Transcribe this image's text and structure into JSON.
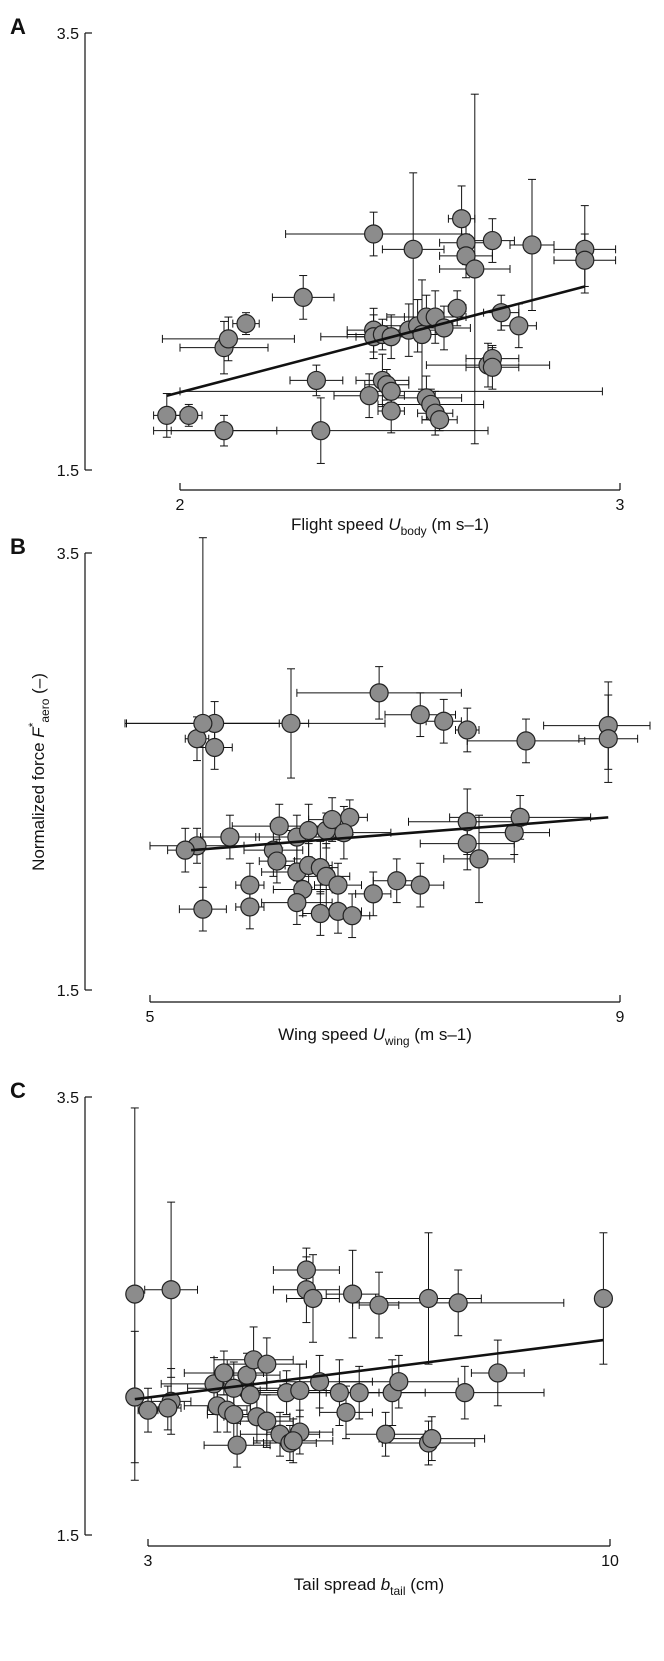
{
  "figure": {
    "panels": [
      "A",
      "B",
      "C"
    ],
    "ylabel": "Normalized force",
    "ylabel_symbol": "F",
    "ylabel_sup": "*",
    "ylabel_sub": "aero",
    "ylabel_unit": "(–)"
  },
  "colors": {
    "marker_fill": "#8c8c8c",
    "marker_stroke": "#222222",
    "fit_line": "#111111",
    "axis": "#111111"
  },
  "chart_data": [
    {
      "type": "scatter",
      "panel": "A",
      "xlabel": "Flight speed",
      "xlabel_symbol": "U",
      "xlabel_sub": "body",
      "xlabel_unit": "(m s–1)",
      "xlim": [
        2,
        3
      ],
      "ylim": [
        1.5,
        3.5
      ],
      "xticks": [
        "2",
        "3"
      ],
      "yticks": [
        "1.5",
        "3.5"
      ],
      "points": [
        {
          "x": 1.97,
          "y": 1.75,
          "xe": 0.03,
          "ye": 0.1
        },
        {
          "x": 2.02,
          "y": 1.75,
          "xe": 0.03,
          "ye": 0.05
        },
        {
          "x": 2.1,
          "y": 1.68,
          "xe": 0.12,
          "ye": 0.07
        },
        {
          "x": 2.32,
          "y": 1.68,
          "xe": 0.38,
          "ye": 0.15
        },
        {
          "x": 2.1,
          "y": 2.06,
          "xe": 0.1,
          "ye": 0.12
        },
        {
          "x": 2.11,
          "y": 2.1,
          "xe": 0.15,
          "ye": 0.1
        },
        {
          "x": 2.15,
          "y": 2.17,
          "xe": 0.03,
          "ye": 0.05
        },
        {
          "x": 2.28,
          "y": 2.29,
          "xe": 0.07,
          "ye": 0.1
        },
        {
          "x": 2.31,
          "y": 1.91,
          "xe": 0.06,
          "ye": 0.07
        },
        {
          "x": 2.44,
          "y": 2.14,
          "xe": 0.06,
          "ye": 0.1
        },
        {
          "x": 2.44,
          "y": 2.11,
          "xe": 0.12,
          "ye": 0.1
        },
        {
          "x": 2.46,
          "y": 2.12,
          "xe": 0.08,
          "ye": 0.07
        },
        {
          "x": 2.48,
          "y": 2.11,
          "xe": 0.08,
          "ye": 0.1
        },
        {
          "x": 2.46,
          "y": 1.91,
          "xe": 0.06,
          "ye": 0.12
        },
        {
          "x": 2.47,
          "y": 1.89,
          "xe": 0.05,
          "ye": 0.07
        },
        {
          "x": 2.48,
          "y": 1.86,
          "xe": 0.48,
          "ye": 0.05
        },
        {
          "x": 2.43,
          "y": 1.84,
          "xe": 0.08,
          "ye": 0.1
        },
        {
          "x": 2.48,
          "y": 1.77,
          "xe": 0.03,
          "ye": 0.1
        },
        {
          "x": 2.52,
          "y": 2.14,
          "xe": 0.07,
          "ye": 0.12
        },
        {
          "x": 2.54,
          "y": 2.16,
          "xe": 0.08,
          "ye": 0.12
        },
        {
          "x": 2.55,
          "y": 2.12,
          "xe": 0.05,
          "ye": 0.25
        },
        {
          "x": 2.56,
          "y": 2.2,
          "xe": 0.09,
          "ye": 0.1
        },
        {
          "x": 2.58,
          "y": 2.2,
          "xe": 0.07,
          "ye": 0.12
        },
        {
          "x": 2.6,
          "y": 2.15,
          "xe": 0.06,
          "ye": 0.1
        },
        {
          "x": 2.56,
          "y": 1.83,
          "xe": 0.08,
          "ye": 0.1
        },
        {
          "x": 2.57,
          "y": 1.8,
          "xe": 0.12,
          "ye": 0.07
        },
        {
          "x": 2.58,
          "y": 1.76,
          "xe": 0.04,
          "ye": 0.1
        },
        {
          "x": 2.59,
          "y": 1.73,
          "xe": 0.04,
          "ye": 0.05
        },
        {
          "x": 2.64,
          "y": 2.65,
          "xe": 0.03,
          "ye": 0.15
        },
        {
          "x": 2.63,
          "y": 2.24,
          "xe": 0.02,
          "ye": 0.08
        },
        {
          "x": 2.65,
          "y": 2.54,
          "xe": 0.06,
          "ye": 0.1
        },
        {
          "x": 2.65,
          "y": 2.48,
          "xe": 0.06,
          "ye": 0.1
        },
        {
          "x": 2.67,
          "y": 2.42,
          "xe": 0.08,
          "ye": 0.8
        },
        {
          "x": 2.71,
          "y": 2.55,
          "xe": 0.05,
          "ye": 0.1
        },
        {
          "x": 2.53,
          "y": 2.51,
          "xe": 0.07,
          "ye": 0.35
        },
        {
          "x": 2.44,
          "y": 2.58,
          "xe": 0.2,
          "ye": 0.1
        },
        {
          "x": 2.7,
          "y": 1.98,
          "xe": 0.14,
          "ye": 0.1
        },
        {
          "x": 2.71,
          "y": 2.01,
          "xe": 0.06,
          "ye": 0.05
        },
        {
          "x": 2.73,
          "y": 2.22,
          "xe": 0.04,
          "ye": 0.08
        },
        {
          "x": 2.77,
          "y": 2.16,
          "xe": 0.04,
          "ye": 0.1
        },
        {
          "x": 2.8,
          "y": 2.53,
          "xe": 0.05,
          "ye": 0.3
        },
        {
          "x": 2.92,
          "y": 2.51,
          "xe": 0.07,
          "ye": 0.2
        },
        {
          "x": 2.92,
          "y": 2.46,
          "xe": 0.07,
          "ye": 0.12
        },
        {
          "x": 2.71,
          "y": 1.97,
          "xe": 0.06,
          "ye": 0.1
        }
      ],
      "fit": [
        [
          1.97,
          1.84
        ],
        [
          2.92,
          2.34
        ]
      ]
    },
    {
      "type": "scatter",
      "panel": "B",
      "xlabel": "Wing speed",
      "xlabel_symbol": "U",
      "xlabel_sub": "wing",
      "xlabel_unit": "(m s–1)",
      "xlim": [
        5,
        9
      ],
      "ylim": [
        1.5,
        3.5
      ],
      "xticks": [
        "5",
        "9"
      ],
      "yticks": [
        "1.5",
        "3.5"
      ],
      "points": [
        {
          "x": 5.4,
          "y": 2.65,
          "xe": 0.1,
          "ye": 0.1
        },
        {
          "x": 5.55,
          "y": 2.72,
          "xe": 0.8,
          "ye": 0.1
        },
        {
          "x": 5.45,
          "y": 2.72,
          "xe": 0.65,
          "ye": 0.85
        },
        {
          "x": 5.55,
          "y": 2.61,
          "xe": 0.15,
          "ye": 0.1
        },
        {
          "x": 6.2,
          "y": 2.72,
          "xe": 0.8,
          "ye": 0.25
        },
        {
          "x": 6.95,
          "y": 2.86,
          "xe": 0.7,
          "ye": 0.12
        },
        {
          "x": 7.3,
          "y": 2.76,
          "xe": 0.3,
          "ye": 0.1
        },
        {
          "x": 7.5,
          "y": 2.73,
          "xe": 0.15,
          "ye": 0.1
        },
        {
          "x": 7.7,
          "y": 2.69,
          "xe": 0.1,
          "ye": 0.1
        },
        {
          "x": 8.2,
          "y": 2.64,
          "xe": 0.5,
          "ye": 0.1
        },
        {
          "x": 8.9,
          "y": 2.71,
          "xe": 0.55,
          "ye": 0.2
        },
        {
          "x": 8.9,
          "y": 2.65,
          "xe": 0.25,
          "ye": 0.2
        },
        {
          "x": 5.4,
          "y": 2.16,
          "xe": 0.4,
          "ye": 0.08
        },
        {
          "x": 5.68,
          "y": 2.2,
          "xe": 0.25,
          "ye": 0.1
        },
        {
          "x": 5.3,
          "y": 2.14,
          "xe": 0.15,
          "ye": 0.1
        },
        {
          "x": 6.05,
          "y": 2.14,
          "xe": 0.25,
          "ye": 0.12
        },
        {
          "x": 6.1,
          "y": 2.25,
          "xe": 0.4,
          "ye": 0.1
        },
        {
          "x": 6.25,
          "y": 2.2,
          "xe": 0.35,
          "ye": 0.1
        },
        {
          "x": 6.35,
          "y": 2.23,
          "xe": 0.3,
          "ye": 0.12
        },
        {
          "x": 6.5,
          "y": 2.23,
          "xe": 0.2,
          "ye": 0.08
        },
        {
          "x": 6.55,
          "y": 2.28,
          "xe": 0.2,
          "ye": 0.1
        },
        {
          "x": 6.7,
          "y": 2.29,
          "xe": 0.15,
          "ye": 0.08
        },
        {
          "x": 6.65,
          "y": 2.22,
          "xe": 0.4,
          "ye": 0.12
        },
        {
          "x": 6.25,
          "y": 2.04,
          "xe": 0.3,
          "ye": 0.15
        },
        {
          "x": 6.3,
          "y": 1.96,
          "xe": 0.25,
          "ye": 0.12
        },
        {
          "x": 6.08,
          "y": 2.09,
          "xe": 0.15,
          "ye": 0.1
        },
        {
          "x": 6.25,
          "y": 1.9,
          "xe": 0.3,
          "ye": 0.1
        },
        {
          "x": 6.35,
          "y": 2.07,
          "xe": 0.2,
          "ye": 0.1
        },
        {
          "x": 6.45,
          "y": 2.06,
          "xe": 0.15,
          "ye": 0.12
        },
        {
          "x": 6.5,
          "y": 2.02,
          "xe": 0.2,
          "ye": 0.15
        },
        {
          "x": 5.85,
          "y": 1.98,
          "xe": 0.12,
          "ye": 0.1
        },
        {
          "x": 5.85,
          "y": 1.88,
          "xe": 0.12,
          "ye": 0.1
        },
        {
          "x": 5.45,
          "y": 1.87,
          "xe": 0.2,
          "ye": 0.1
        },
        {
          "x": 6.6,
          "y": 1.98,
          "xe": 0.2,
          "ye": 0.1
        },
        {
          "x": 6.45,
          "y": 1.85,
          "xe": 0.15,
          "ye": 0.1
        },
        {
          "x": 6.6,
          "y": 1.86,
          "xe": 0.2,
          "ye": 0.1
        },
        {
          "x": 6.72,
          "y": 1.84,
          "xe": 0.15,
          "ye": 0.1
        },
        {
          "x": 6.9,
          "y": 1.94,
          "xe": 0.15,
          "ye": 0.1
        },
        {
          "x": 7.1,
          "y": 2.0,
          "xe": 0.2,
          "ye": 0.1
        },
        {
          "x": 7.3,
          "y": 1.98,
          "xe": 0.2,
          "ye": 0.1
        },
        {
          "x": 7.7,
          "y": 2.27,
          "xe": 0.5,
          "ye": 0.15
        },
        {
          "x": 7.7,
          "y": 2.17,
          "xe": 0.4,
          "ye": 0.12
        },
        {
          "x": 7.8,
          "y": 2.1,
          "xe": 0.3,
          "ye": 0.2
        },
        {
          "x": 8.1,
          "y": 2.22,
          "xe": 0.3,
          "ye": 0.1
        },
        {
          "x": 8.15,
          "y": 2.29,
          "xe": 0.6,
          "ye": 0.1
        }
      ],
      "fit": [
        [
          5.35,
          2.14
        ],
        [
          8.9,
          2.29
        ]
      ]
    },
    {
      "type": "scatter",
      "panel": "C",
      "xlabel": "Tail spread",
      "xlabel_symbol": "b",
      "xlabel_sub": "tail",
      "xlabel_unit": "(cm)",
      "xlim": [
        3,
        10
      ],
      "ylim": [
        1.5,
        3.5
      ],
      "xticks": [
        "3",
        "10"
      ],
      "yticks": [
        "1.5",
        "3.5"
      ],
      "points": [
        {
          "x": 2.8,
          "y": 2.6,
          "xe": 0.05,
          "ye": 0.85
        },
        {
          "x": 3.35,
          "y": 2.62,
          "xe": 0.4,
          "ye": 0.4
        },
        {
          "x": 2.8,
          "y": 2.13,
          "xe": 0.05,
          "ye": 0.3
        },
        {
          "x": 3.35,
          "y": 2.11,
          "xe": 0.3,
          "ye": 0.15
        },
        {
          "x": 3.3,
          "y": 2.08,
          "xe": 0.2,
          "ye": 0.1
        },
        {
          "x": 3.0,
          "y": 2.07,
          "xe": 0.15,
          "ye": 0.1
        },
        {
          "x": 4.0,
          "y": 2.19,
          "xe": 0.8,
          "ye": 0.12
        },
        {
          "x": 4.15,
          "y": 2.24,
          "xe": 0.6,
          "ye": 0.1
        },
        {
          "x": 4.3,
          "y": 2.17,
          "xe": 0.7,
          "ye": 0.12
        },
        {
          "x": 4.5,
          "y": 2.23,
          "xe": 0.5,
          "ye": 0.1
        },
        {
          "x": 4.6,
          "y": 2.3,
          "xe": 0.6,
          "ye": 0.15
        },
        {
          "x": 4.8,
          "y": 2.28,
          "xe": 0.6,
          "ye": 0.12
        },
        {
          "x": 4.05,
          "y": 2.09,
          "xe": 0.5,
          "ye": 0.12
        },
        {
          "x": 4.2,
          "y": 2.07,
          "xe": 0.3,
          "ye": 0.1
        },
        {
          "x": 4.55,
          "y": 2.14,
          "xe": 0.5,
          "ye": 0.12
        },
        {
          "x": 5.1,
          "y": 2.15,
          "xe": 0.7,
          "ye": 0.1
        },
        {
          "x": 4.3,
          "y": 2.05,
          "xe": 0.4,
          "ye": 0.12
        },
        {
          "x": 4.35,
          "y": 1.91,
          "xe": 0.5,
          "ye": 0.1
        },
        {
          "x": 4.65,
          "y": 2.04,
          "xe": 0.5,
          "ye": 0.12
        },
        {
          "x": 4.8,
          "y": 2.02,
          "xe": 0.4,
          "ye": 0.12
        },
        {
          "x": 5.0,
          "y": 1.96,
          "xe": 0.6,
          "ye": 0.1
        },
        {
          "x": 5.3,
          "y": 1.97,
          "xe": 0.5,
          "ye": 0.1
        },
        {
          "x": 5.15,
          "y": 1.92,
          "xe": 0.4,
          "ye": 0.08
        },
        {
          "x": 5.2,
          "y": 1.93,
          "xe": 0.6,
          "ye": 0.1
        },
        {
          "x": 5.3,
          "y": 2.16,
          "xe": 0.6,
          "ye": 0.12
        },
        {
          "x": 5.6,
          "y": 2.2,
          "xe": 0.8,
          "ye": 0.12
        },
        {
          "x": 5.4,
          "y": 2.71,
          "xe": 0.5,
          "ye": 0.1
        },
        {
          "x": 5.4,
          "y": 2.62,
          "xe": 0.5,
          "ye": 0.15
        },
        {
          "x": 5.5,
          "y": 2.58,
          "xe": 0.4,
          "ye": 0.2
        },
        {
          "x": 6.1,
          "y": 2.6,
          "xe": 0.4,
          "ye": 0.2
        },
        {
          "x": 5.9,
          "y": 2.15,
          "xe": 0.6,
          "ye": 0.15
        },
        {
          "x": 6.0,
          "y": 2.06,
          "xe": 0.4,
          "ye": 0.12
        },
        {
          "x": 6.2,
          "y": 2.15,
          "xe": 0.5,
          "ye": 0.12
        },
        {
          "x": 6.5,
          "y": 2.55,
          "xe": 0.3,
          "ye": 0.15
        },
        {
          "x": 6.7,
          "y": 2.15,
          "xe": 0.5,
          "ye": 0.15
        },
        {
          "x": 6.8,
          "y": 2.2,
          "xe": 0.9,
          "ye": 0.12
        },
        {
          "x": 6.6,
          "y": 1.96,
          "xe": 0.6,
          "ye": 0.1
        },
        {
          "x": 7.25,
          "y": 2.58,
          "xe": 0.8,
          "ye": 0.3
        },
        {
          "x": 7.25,
          "y": 1.92,
          "xe": 0.7,
          "ye": 0.1
        },
        {
          "x": 7.3,
          "y": 1.94,
          "xe": 0.8,
          "ye": 0.1
        },
        {
          "x": 7.8,
          "y": 2.15,
          "xe": 1.2,
          "ye": 0.12
        },
        {
          "x": 7.7,
          "y": 2.56,
          "xe": 1.6,
          "ye": 0.15
        },
        {
          "x": 8.3,
          "y": 2.24,
          "xe": 0.4,
          "ye": 0.15
        },
        {
          "x": 9.9,
          "y": 2.58,
          "xe": 0.1,
          "ye": 0.3
        }
      ],
      "fit": [
        [
          2.8,
          2.12
        ],
        [
          9.9,
          2.39
        ]
      ]
    }
  ]
}
